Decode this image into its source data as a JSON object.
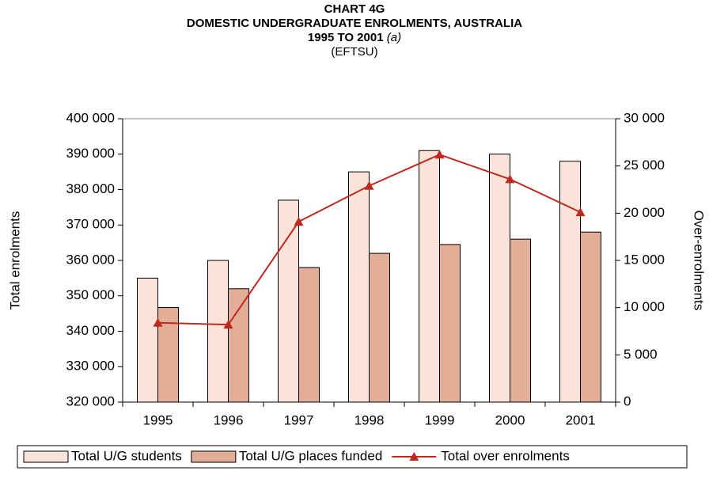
{
  "chart_data": {
    "type": "bar",
    "title": "CHART 4G",
    "subtitle": "DOMESTIC UNDERGRADUATE ENROLMENTS, AUSTRALIA",
    "period": "1995 TO 2001",
    "note": "(a)",
    "unit": "(EFTSU)",
    "ylabel": "Total enrolments",
    "y2label": "Over-enrolments",
    "categories": [
      "1995",
      "1996",
      "1997",
      "1998",
      "1999",
      "2000",
      "2001"
    ],
    "series": [
      {
        "name": "Total U/G students",
        "type": "bar",
        "color": "#fae3d8",
        "values": [
          355000,
          360000,
          377000,
          385000,
          391000,
          390000,
          388000
        ]
      },
      {
        "name": "Total U/G places funded",
        "type": "bar",
        "color": "#e2ae98",
        "values": [
          346700,
          352000,
          358000,
          362000,
          364500,
          366000,
          368000
        ]
      },
      {
        "name": "Total over enrolments",
        "type": "line",
        "axis": "y2",
        "color": "#c0281e",
        "values": [
          8400,
          8200,
          19100,
          22900,
          26200,
          23600,
          20100
        ]
      }
    ],
    "ylim": [
      320000,
      400000
    ],
    "yticks": [
      {
        "value": 320000,
        "label": "320 000"
      },
      {
        "value": 330000,
        "label": "330 000"
      },
      {
        "value": 340000,
        "label": "340 000"
      },
      {
        "value": 350000,
        "label": "350 000"
      },
      {
        "value": 360000,
        "label": "360 000"
      },
      {
        "value": 370000,
        "label": "370 000"
      },
      {
        "value": 380000,
        "label": "380 000"
      },
      {
        "value": 390000,
        "label": "390 000"
      },
      {
        "value": 400000,
        "label": "400 000"
      }
    ],
    "y2lim": [
      0,
      30000
    ],
    "y2ticks": [
      0,
      {
        "value": 5000,
        "label": "5 000"
      },
      {
        "value": 10000,
        "label": "10 000"
      },
      {
        "value": 15000,
        "label": "15 000"
      },
      {
        "value": 20000,
        "label": "20 000"
      },
      {
        "value": 25000,
        "label": "25 000"
      },
      {
        "value": 30000,
        "label": "30 000"
      }
    ],
    "grid": false,
    "legend": "bottom"
  }
}
